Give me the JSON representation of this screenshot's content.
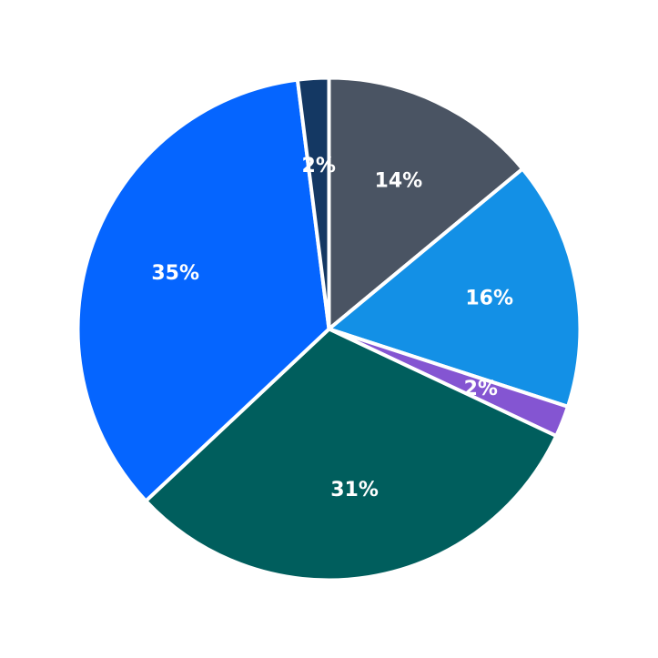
{
  "chart_data": {
    "type": "pie",
    "start_angle_deg": 0,
    "direction": "clockwise",
    "slices": [
      {
        "label": "14%",
        "value": 14,
        "color": "#4a5463"
      },
      {
        "label": "16%",
        "value": 16,
        "color": "#1390e6"
      },
      {
        "label": "2%",
        "value": 2,
        "color": "#8455d2"
      },
      {
        "label": "31%",
        "value": 31,
        "color": "#005e5d"
      },
      {
        "label": "35%",
        "value": 35,
        "color": "#0565ff"
      },
      {
        "label": "2%",
        "value": 2,
        "color": "#143863"
      }
    ]
  }
}
